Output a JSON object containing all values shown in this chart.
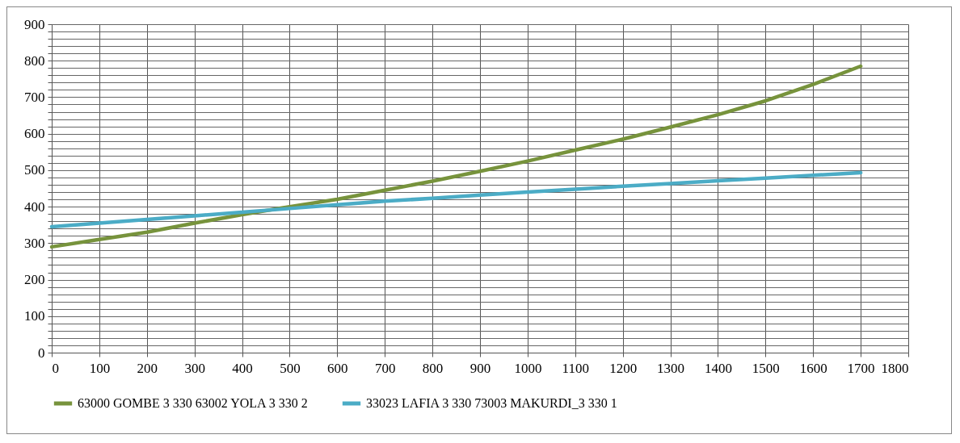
{
  "chart_data": {
    "type": "line",
    "x": [
      0,
      100,
      200,
      300,
      400,
      500,
      600,
      700,
      800,
      900,
      1000,
      1100,
      1200,
      1300,
      1400,
      1500,
      1600,
      1700
    ],
    "series": [
      {
        "name": "63000 GOMBE 3 330 63002 YOLA 3 330 2",
        "color": "#77933c",
        "values": [
          290,
          310,
          330,
          355,
          378,
          400,
          420,
          445,
          470,
          497,
          525,
          555,
          585,
          618,
          652,
          690,
          735,
          785
        ]
      },
      {
        "name": "33023 LAFIA 3 330 73003 MAKURDI_3 330 1",
        "color": "#4bacc6",
        "values": [
          345,
          355,
          365,
          375,
          385,
          395,
          405,
          415,
          423,
          432,
          440,
          448,
          456,
          463,
          471,
          478,
          486,
          493
        ]
      }
    ],
    "xlim": [
      0,
      1800
    ],
    "xticks": [
      0,
      100,
      200,
      300,
      400,
      500,
      600,
      700,
      800,
      900,
      1000,
      1100,
      1200,
      1300,
      1400,
      1500,
      1600,
      1700,
      1800
    ],
    "ylim": [
      0,
      900
    ],
    "yticks": [
      0,
      {
        "value": 20,
        "label": null
      },
      {
        "value": 40,
        "label": null
      },
      {
        "value": 60,
        "label": null
      },
      {
        "value": 80,
        "label": null
      },
      100,
      {
        "value": 120,
        "label": null
      },
      {
        "value": 140,
        "label": null
      },
      {
        "value": 160,
        "label": null
      },
      {
        "value": 180,
        "label": null
      },
      200,
      {
        "value": 220,
        "label": null
      },
      {
        "value": 240,
        "label": null
      },
      {
        "value": 260,
        "label": null
      },
      {
        "value": 280,
        "label": null
      },
      300,
      {
        "value": 320,
        "label": null
      },
      {
        "value": 340,
        "label": null
      },
      {
        "value": 360,
        "label": null
      },
      {
        "value": 380,
        "label": null
      },
      400,
      {
        "value": 420,
        "label": null
      },
      {
        "value": 440,
        "label": null
      },
      {
        "value": 460,
        "label": null
      },
      {
        "value": 480,
        "label": null
      },
      500,
      {
        "value": 520,
        "label": null
      },
      {
        "value": 540,
        "label": null
      },
      {
        "value": 560,
        "label": null
      },
      {
        "value": 580,
        "label": null
      },
      600,
      {
        "value": 620,
        "label": null
      },
      {
        "value": 640,
        "label": null
      },
      {
        "value": 660,
        "label": null
      },
      {
        "value": 680,
        "label": null
      },
      700,
      {
        "value": 720,
        "label": null
      },
      {
        "value": 740,
        "label": null
      },
      {
        "value": 760,
        "label": null
      },
      {
        "value": 780,
        "label": null
      },
      800,
      {
        "value": 820,
        "label": null
      },
      {
        "value": 840,
        "label": null
      },
      {
        "value": 860,
        "label": null
      },
      {
        "value": 880,
        "label": null
      },
      900
    ],
    "grid": true,
    "legend": "bottom",
    "marker": "none",
    "line_style": "solid"
  }
}
